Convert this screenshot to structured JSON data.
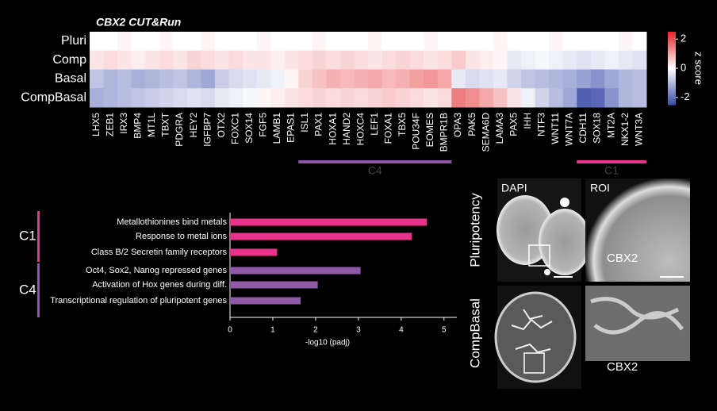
{
  "chart_data": [
    {
      "type": "heatmap",
      "title": "CBX2 CUT&Run",
      "rows": [
        "Pluri",
        "Comp",
        "Basal",
        "CompBasal"
      ],
      "categories": [
        "LHX5",
        "ZEB1",
        "IRX3",
        "BMP4",
        "MT1L",
        "TBXT",
        "PDGRA",
        "HEY2",
        "IGFBP7",
        "OTX2",
        "FOXC1",
        "SOX14",
        "FGF5",
        "LAMB1",
        "EPAS1",
        "ISL1",
        "PAX1",
        "HOXA1",
        "HAND2",
        "HOXC4",
        "LEF1",
        "FOXA1",
        "TBX5",
        "POU34F",
        "EOMES",
        "BMPR1B",
        "OPA3",
        "PAK5",
        "SEMA6D",
        "LAMA3",
        "PAX5",
        "IHH",
        "NTF3",
        "WNT11",
        "WNT7A",
        "CDH11",
        "SOX18",
        "MT2A",
        "NKX1-2",
        "WNT3A"
      ],
      "values": [
        [
          0.0,
          0.0,
          0.1,
          0.0,
          0.0,
          0.1,
          0.0,
          0.0,
          0.1,
          0.0,
          0.0,
          0.0,
          0.1,
          0.0,
          0.0,
          0.0,
          0.1,
          0.0,
          0.0,
          0.0,
          0.1,
          0.0,
          0.0,
          0.0,
          0.1,
          0.0,
          0.0,
          0.0,
          0.0,
          0.1,
          0.0,
          0.0,
          0.0,
          0.1,
          0.0,
          0.0,
          0.0,
          0.0,
          0.1,
          0.0
        ],
        [
          0.3,
          0.4,
          0.3,
          0.2,
          0.3,
          0.4,
          0.3,
          0.5,
          0.4,
          0.3,
          0.4,
          0.3,
          0.3,
          0.2,
          0.3,
          0.4,
          0.5,
          0.4,
          0.5,
          0.4,
          0.3,
          0.4,
          0.5,
          0.4,
          0.3,
          0.4,
          0.6,
          0.3,
          0.2,
          0.1,
          -0.3,
          -0.2,
          -0.1,
          -0.2,
          -0.3,
          -0.4,
          -0.3,
          -0.2,
          -0.3,
          -0.4
        ],
        [
          -0.8,
          -1.0,
          -0.9,
          -1.1,
          -1.0,
          -0.9,
          -0.8,
          -1.0,
          -1.2,
          -0.7,
          -0.5,
          -0.4,
          -0.3,
          -0.2,
          0.1,
          0.5,
          0.7,
          0.9,
          0.8,
          0.9,
          1.0,
          0.8,
          0.9,
          1.1,
          1.2,
          1.0,
          -0.3,
          -0.5,
          -0.4,
          -0.3,
          -0.6,
          -0.8,
          -0.9,
          -1.0,
          -1.1,
          -1.3,
          -1.5,
          -1.2,
          -1.0,
          -0.9
        ],
        [
          -1.1,
          -1.0,
          -0.9,
          -0.8,
          -0.7,
          -0.6,
          -0.5,
          -0.4,
          -0.5,
          -0.3,
          -0.2,
          -0.1,
          0.1,
          0.2,
          0.3,
          0.4,
          0.5,
          0.4,
          0.5,
          0.4,
          0.5,
          0.6,
          0.5,
          0.4,
          0.3,
          0.4,
          1.5,
          1.3,
          1.0,
          0.7,
          0.3,
          -0.2,
          -0.6,
          -0.9,
          -1.2,
          -2.2,
          -2.1,
          -1.5,
          -1.0,
          -0.9
        ]
      ],
      "zlim": [
        -2.5,
        2.5
      ],
      "zticks": [
        -2,
        0,
        2
      ],
      "colorbar_label": "z score",
      "colors": [
        "#3a4aa8",
        "#ffffff",
        "#e3262a"
      ],
      "annotations": [
        {
          "text": "C4",
          "color": "#8e5aa5"
        },
        {
          "text": "C1",
          "color": "#e8338a"
        }
      ]
    },
    {
      "type": "barh",
      "categories": [
        "Metallothionines bind metals",
        "Response to metal ions",
        "Class B/2 Secretin family receptors",
        "Oct4, Sox2, Nanog repressed genes",
        "Activation of Hox genes during diff.",
        "Transcriptional regulation of pluripotent genes"
      ],
      "values": [
        4.6,
        4.25,
        1.1,
        3.05,
        2.05,
        1.65
      ],
      "colors": [
        "#e8338a",
        "#e8338a",
        "#e8338a",
        "#8e5aa5",
        "#8e5aa5",
        "#8e5aa5"
      ],
      "groups": [
        {
          "text": "C1",
          "color": "#e8338a"
        },
        {
          "text": "C4",
          "color": "#8e5aa5"
        }
      ],
      "xlim": [
        0,
        5.3
      ],
      "xticks": [
        0,
        1,
        2,
        3,
        4,
        5
      ],
      "xlabel": "-log10 (padj)"
    }
  ],
  "images": {
    "row_labels": [
      "Pluripotency",
      "CompBasal"
    ],
    "column_labels": [
      "DAPI",
      "ROI"
    ],
    "stain": [
      "CBX2",
      "CBX2"
    ]
  }
}
